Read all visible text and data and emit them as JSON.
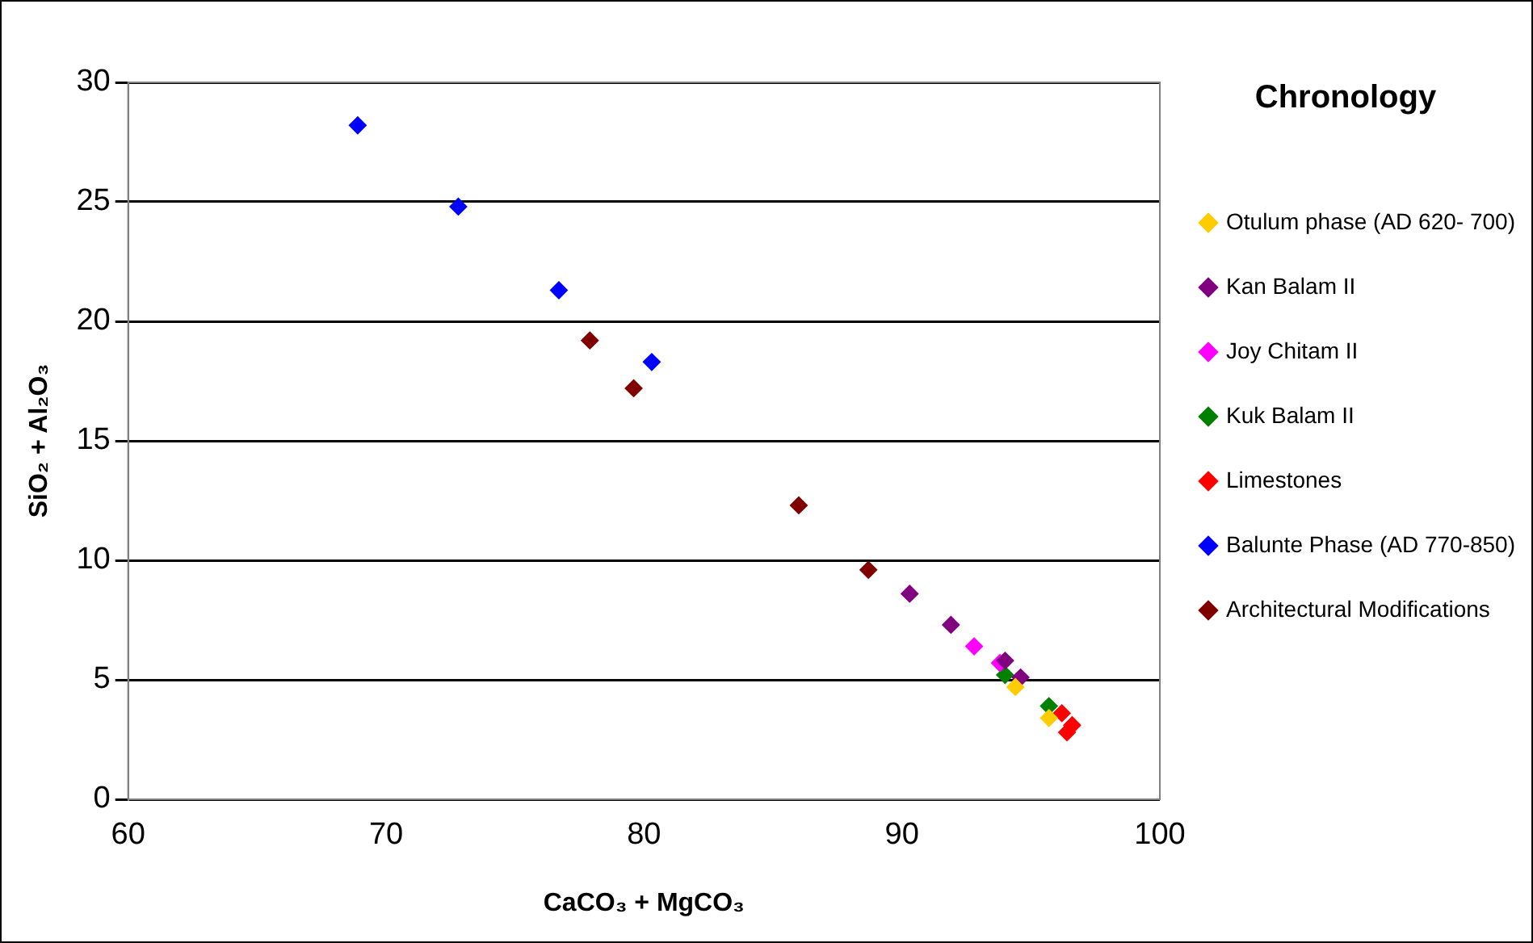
{
  "chart_data": {
    "type": "scatter",
    "xlabel": "CaCO₃ + MgCO₃",
    "ylabel": "SiO₂ + Al₂O₃",
    "legend_title": "Chronology",
    "legend": "right",
    "grid": "y",
    "marker": "diamond",
    "xlim": [
      60,
      100
    ],
    "xticks": [
      60,
      70,
      80,
      90,
      100
    ],
    "ylim": [
      0,
      30
    ],
    "yticks": [
      0,
      5,
      10,
      15,
      20,
      25,
      30
    ],
    "series": [
      {
        "name": "Otulum phase (AD 620- 700)",
        "color": "#ffcc00",
        "x": [
          94.4,
          95.7
        ],
        "values": [
          4.7,
          3.4
        ]
      },
      {
        "name": "Kan Balam II",
        "color": "#800080",
        "x": [
          90.3,
          91.9,
          94.0,
          94.6
        ],
        "values": [
          8.6,
          7.3,
          5.8,
          5.1
        ]
      },
      {
        "name": "Joy Chitam II",
        "color": "#ff00ff",
        "x": [
          92.8,
          93.8
        ],
        "values": [
          6.4,
          5.7
        ]
      },
      {
        "name": "Kuk Balam II",
        "color": "#008000",
        "x": [
          94.0,
          95.7
        ],
        "values": [
          5.2,
          3.9
        ]
      },
      {
        "name": "Limestones",
        "color": "#ff0000",
        "x": [
          96.2,
          96.6,
          96.4
        ],
        "values": [
          3.6,
          3.1,
          2.8
        ]
      },
      {
        "name": "Balunte Phase (AD 770-850)",
        "color": "#0000ff",
        "x": [
          68.9,
          72.8,
          76.7,
          80.3
        ],
        "values": [
          28.2,
          24.8,
          21.3,
          18.3
        ]
      },
      {
        "name": "Architectural Modifications",
        "color": "#800000",
        "x": [
          77.9,
          79.6,
          86.0,
          88.7
        ],
        "values": [
          19.2,
          17.2,
          12.3,
          9.6
        ]
      }
    ]
  }
}
